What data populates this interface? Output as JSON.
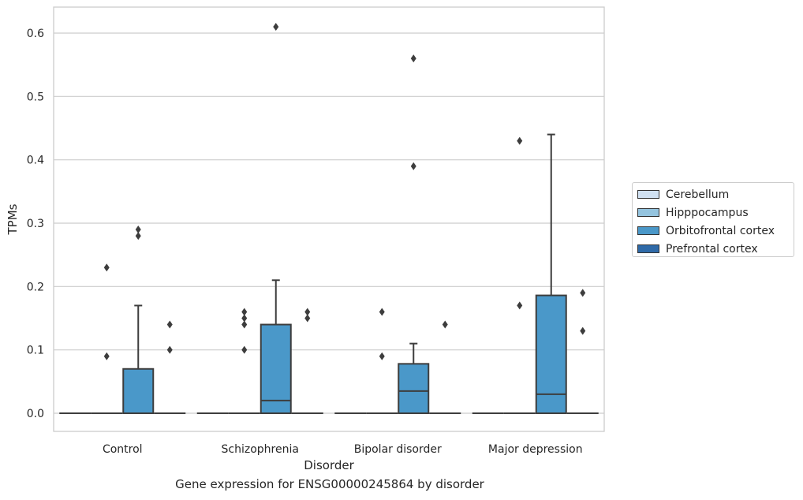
{
  "caption": "Gene expression for ENSG00000245864 by disorder",
  "chart_data": {
    "type": "box",
    "title": "",
    "xlabel": "Disorder",
    "ylabel": "TPMs",
    "categories": [
      "Control",
      "Schizophrenia",
      "Bipolar disorder",
      "Major depression"
    ],
    "ylim": [
      -0.03,
      0.64
    ],
    "yticks": [
      0.0,
      0.1,
      0.2,
      0.3,
      0.4,
      0.5,
      0.6
    ],
    "ytick_labels": [
      "0.0",
      "0.1",
      "0.2",
      "0.3",
      "0.4",
      "0.5",
      "0.6"
    ],
    "grid": true,
    "legend_position": "right",
    "series": [
      {
        "name": "Cerebellum",
        "color": "#d0e1f2",
        "boxes": [
          {
            "category": "Control",
            "q1": 0,
            "median": 0,
            "q3": 0,
            "whislo": 0,
            "whishi": 0,
            "fliers": []
          },
          {
            "category": "Schizophrenia",
            "q1": 0,
            "median": 0,
            "q3": 0,
            "whislo": 0,
            "whishi": 0,
            "fliers": []
          },
          {
            "category": "Bipolar disorder",
            "q1": 0,
            "median": 0,
            "q3": 0,
            "whislo": 0,
            "whishi": 0,
            "fliers": []
          },
          {
            "category": "Major depression",
            "q1": 0,
            "median": 0,
            "q3": 0,
            "whislo": 0,
            "whishi": 0,
            "fliers": []
          }
        ]
      },
      {
        "name": "Hipppocampus",
        "color": "#94c4df",
        "boxes": [
          {
            "category": "Control",
            "q1": 0,
            "median": 0,
            "q3": 0,
            "whislo": 0,
            "whishi": 0,
            "fliers": [
              0.09,
              0.23
            ]
          },
          {
            "category": "Schizophrenia",
            "q1": 0,
            "median": 0,
            "q3": 0,
            "whislo": 0,
            "whishi": 0,
            "fliers": [
              0.1,
              0.14,
              0.15,
              0.16
            ]
          },
          {
            "category": "Bipolar disorder",
            "q1": 0,
            "median": 0,
            "q3": 0,
            "whislo": 0,
            "whishi": 0,
            "fliers": [
              0.09,
              0.16
            ]
          },
          {
            "category": "Major depression",
            "q1": 0,
            "median": 0,
            "q3": 0,
            "whislo": 0,
            "whishi": 0,
            "fliers": [
              0.17,
              0.43
            ]
          }
        ]
      },
      {
        "name": "Orbitofrontal cortex",
        "color": "#4a98c9",
        "boxes": [
          {
            "category": "Control",
            "q1": 0,
            "median": 0,
            "q3": 0.07,
            "whislo": 0,
            "whishi": 0.17,
            "fliers": [
              0.28,
              0.29
            ]
          },
          {
            "category": "Schizophrenia",
            "q1": 0,
            "median": 0.02,
            "q3": 0.14,
            "whislo": 0,
            "whishi": 0.21,
            "fliers": [
              0.61
            ]
          },
          {
            "category": "Bipolar disorder",
            "q1": 0,
            "median": 0.035,
            "q3": 0.078,
            "whislo": 0,
            "whishi": 0.11,
            "fliers": [
              0.39,
              0.56
            ]
          },
          {
            "category": "Major depression",
            "q1": 0,
            "median": 0.03,
            "q3": 0.186,
            "whislo": 0,
            "whishi": 0.44,
            "fliers": []
          }
        ]
      },
      {
        "name": "Prefrontal cortex",
        "color": "#2f6aa8",
        "boxes": [
          {
            "category": "Control",
            "q1": 0,
            "median": 0,
            "q3": 0,
            "whislo": 0,
            "whishi": 0,
            "fliers": [
              0.1,
              0.14
            ]
          },
          {
            "category": "Schizophrenia",
            "q1": 0,
            "median": 0,
            "q3": 0,
            "whislo": 0,
            "whishi": 0,
            "fliers": [
              0.15,
              0.16
            ]
          },
          {
            "category": "Bipolar disorder",
            "q1": 0,
            "median": 0,
            "q3": 0,
            "whislo": 0,
            "whishi": 0,
            "fliers": [
              0.14
            ]
          },
          {
            "category": "Major depression",
            "q1": 0,
            "median": 0,
            "q3": 0,
            "whislo": 0,
            "whishi": 0,
            "fliers": [
              0.13,
              0.19
            ]
          }
        ]
      }
    ]
  }
}
